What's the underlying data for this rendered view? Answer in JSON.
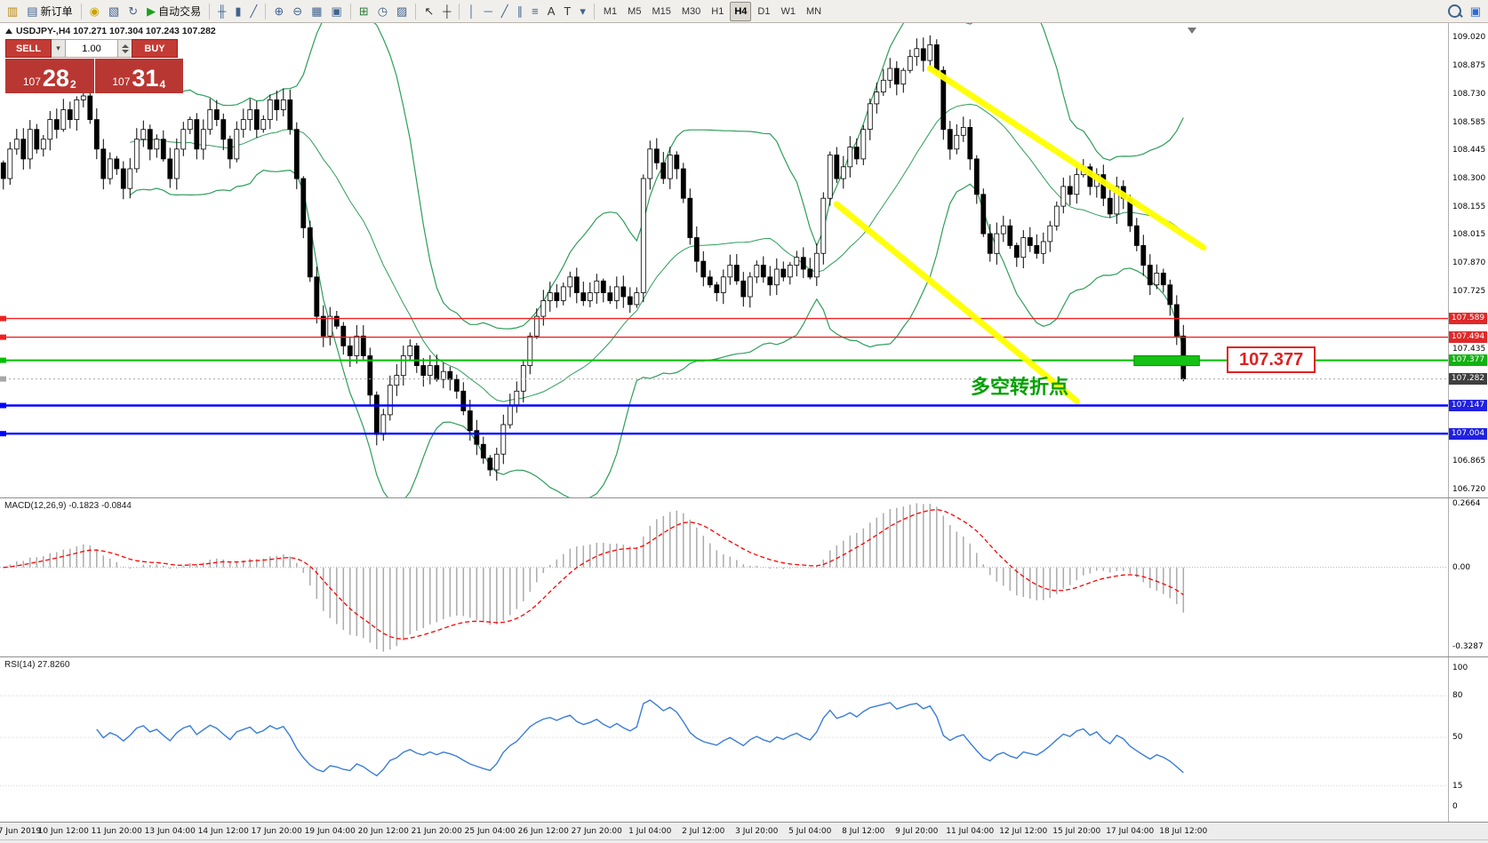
{
  "toolbar": {
    "left_buttons": [
      {
        "n": "terminal",
        "g": "▥",
        "c": "#b8860b"
      },
      {
        "n": "new-order",
        "g": "▤",
        "c": "#3f638f",
        "label": "新订单"
      },
      {
        "n": "sep1",
        "sep": true
      },
      {
        "n": "gold",
        "g": "◉",
        "c": "#c8a400"
      },
      {
        "n": "market-watch",
        "g": "▧",
        "c": "#3f638f"
      },
      {
        "n": "refresh",
        "g": "↻",
        "c": "#3f638f"
      },
      {
        "n": "auto-trading",
        "g": "▶",
        "c": "#1ca01c",
        "label": "自动交易"
      },
      {
        "n": "sep2",
        "sep": true
      },
      {
        "n": "bars-chart",
        "g": "╫",
        "c": "#3f638f"
      },
      {
        "n": "candles-chart",
        "g": "▮",
        "c": "#3f638f"
      },
      {
        "n": "line-chart",
        "g": "╱",
        "c": "#3f638f"
      },
      {
        "n": "sep3",
        "sep": true
      },
      {
        "n": "zoom-in",
        "g": "⊕",
        "c": "#3f638f"
      },
      {
        "n": "zoom-out",
        "g": "⊖",
        "c": "#3f638f"
      },
      {
        "n": "grid",
        "g": "▦",
        "c": "#3f638f"
      },
      {
        "n": "tile-windows",
        "g": "▣",
        "c": "#3f638f"
      },
      {
        "n": "sep4",
        "sep": true
      },
      {
        "n": "indicators",
        "g": "⊞",
        "c": "#2f7d3a"
      },
      {
        "n": "periods",
        "g": "◷",
        "c": "#3f638f"
      },
      {
        "n": "templates",
        "g": "▨",
        "c": "#3f638f"
      },
      {
        "n": "sep5",
        "sep": true
      },
      {
        "n": "cursor",
        "g": "↖",
        "c": "#333333"
      },
      {
        "n": "crosshair",
        "g": "┼",
        "c": "#333333"
      },
      {
        "n": "sep6",
        "sep": true
      },
      {
        "n": "vertical-line",
        "g": "│",
        "c": "#3f638f"
      },
      {
        "n": "horizontal-line",
        "g": "─",
        "c": "#3f638f"
      },
      {
        "n": "trendline",
        "g": "╱",
        "c": "#3f638f"
      },
      {
        "n": "channel",
        "g": "∥",
        "c": "#3f638f"
      },
      {
        "n": "fibonacci",
        "g": "≡",
        "c": "#3f638f"
      },
      {
        "n": "text",
        "g": "A",
        "c": "#333333"
      },
      {
        "n": "label",
        "g": "T",
        "c": "#333333"
      },
      {
        "n": "arrows",
        "g": "▾",
        "c": "#3f638f"
      },
      {
        "n": "sep7",
        "sep": true
      }
    ],
    "timeframes": [
      "M1",
      "M5",
      "M15",
      "M30",
      "H1",
      "H4",
      "D1",
      "W1",
      "MN"
    ],
    "active_timeframe": "H4",
    "right_buttons": [
      {
        "n": "search",
        "search": true
      },
      {
        "n": "chat",
        "g": "▣",
        "c": "#2b6bd4"
      }
    ]
  },
  "trade_panel": {
    "sell_label": "SELL",
    "buy_label": "BUY",
    "volume": "1.00",
    "sell_price": {
      "small": "107",
      "big": "28",
      "sup": "2"
    },
    "buy_price": {
      "small": "107",
      "big": "31",
      "sup": "4"
    }
  },
  "chart_header": {
    "symbol_line": "USDJPY-,H4  107.271 107.304 107.243 107.282"
  },
  "chart_data": {
    "type": "candlestick",
    "symbol": "USDJPY-",
    "timeframe": "H4",
    "current_ohlc": {
      "open": "107.271",
      "high": "107.304",
      "low": "107.243",
      "close": "107.282"
    },
    "y_axis": {
      "min": 106.68,
      "max": 109.09,
      "plain_labels": [
        "109.020",
        "108.875",
        "108.730",
        "108.585",
        "108.445",
        "108.300",
        "108.155",
        "108.015",
        "107.870",
        "107.725",
        "107.435",
        "106.865",
        "106.720"
      ],
      "badges": [
        {
          "text": "107.589",
          "color": "#e02828"
        },
        {
          "text": "107.494",
          "color": "#e02828"
        },
        {
          "text": "107.377",
          "color": "#12b212"
        },
        {
          "text": "107.282",
          "color": "#3f3f3f"
        },
        {
          "text": "107.147",
          "color": "#2020e0"
        },
        {
          "text": "107.004",
          "color": "#2020e0"
        }
      ]
    },
    "time_labels": [
      "7 Jun 2019",
      "10 Jun 12:00",
      "11 Jun 20:00",
      "13 Jun 04:00",
      "14 Jun 12:00",
      "17 Jun 20:00",
      "19 Jun 04:00",
      "20 Jun 12:00",
      "21 Jun 20:00",
      "25 Jun 04:00",
      "26 Jun 12:00",
      "27 Jun 20:00",
      "1 Jul 04:00",
      "2 Jul 12:00",
      "3 Jul 20:00",
      "5 Jul 04:00",
      "8 Jul 12:00",
      "9 Jul 20:00",
      "11 Jul 04:00",
      "12 Jul 12:00",
      "15 Jul 20:00",
      "17 Jul 04:00",
      "18 Jul 12:00"
    ],
    "label_start": 1,
    "label_every": 8,
    "closes": [
      108.3,
      108.45,
      108.5,
      108.4,
      108.55,
      108.45,
      108.5,
      108.6,
      108.55,
      108.65,
      108.6,
      108.7,
      108.72,
      108.6,
      108.45,
      108.3,
      108.4,
      108.35,
      108.25,
      108.35,
      108.5,
      108.55,
      108.45,
      108.5,
      108.4,
      108.3,
      108.45,
      108.55,
      108.6,
      108.45,
      108.55,
      108.65,
      108.6,
      108.5,
      108.4,
      108.55,
      108.6,
      108.65,
      108.55,
      108.6,
      108.7,
      108.65,
      108.7,
      108.55,
      108.3,
      108.05,
      107.8,
      107.6,
      107.5,
      107.6,
      107.55,
      107.45,
      107.4,
      107.5,
      107.4,
      107.2,
      107.0,
      107.1,
      107.25,
      107.3,
      107.4,
      107.45,
      107.35,
      107.3,
      107.35,
      107.28,
      107.32,
      107.28,
      107.22,
      107.12,
      107.02,
      106.95,
      106.88,
      106.82,
      106.9,
      107.05,
      107.15,
      107.22,
      107.35,
      107.5,
      107.6,
      107.68,
      107.72,
      107.68,
      107.75,
      107.8,
      107.72,
      107.68,
      107.72,
      107.78,
      107.72,
      107.68,
      107.75,
      107.7,
      107.66,
      107.72,
      108.3,
      108.45,
      108.38,
      108.3,
      108.42,
      108.35,
      108.2,
      108.0,
      107.88,
      107.8,
      107.76,
      107.72,
      107.8,
      107.86,
      107.78,
      107.7,
      107.8,
      107.86,
      107.8,
      107.76,
      107.84,
      107.8,
      107.86,
      107.9,
      107.84,
      107.8,
      107.92,
      108.2,
      108.42,
      108.3,
      108.36,
      108.46,
      108.4,
      108.55,
      108.68,
      108.74,
      108.8,
      108.86,
      108.78,
      108.85,
      108.92,
      108.96,
      108.9,
      108.98,
      108.85,
      108.55,
      108.45,
      108.52,
      108.56,
      108.4,
      108.22,
      108.02,
      107.92,
      108.02,
      108.06,
      107.96,
      107.9,
      108.0,
      107.96,
      107.92,
      107.98,
      108.06,
      108.16,
      108.26,
      108.22,
      108.32,
      108.36,
      108.26,
      108.32,
      108.2,
      108.12,
      108.26,
      108.2,
      108.06,
      107.96,
      107.86,
      107.76,
      107.82,
      107.76,
      107.66,
      107.5,
      107.282
    ],
    "levels": [
      {
        "price": 107.589,
        "color": "#f02020",
        "width": 1.4
      },
      {
        "price": 107.494,
        "color": "#f02020",
        "width": 1.4
      },
      {
        "price": 107.377,
        "color": "#00c000",
        "width": 2
      },
      {
        "price": 107.282,
        "color": "#a8a8a8",
        "width": 1,
        "dash": "2,3"
      },
      {
        "price": 107.147,
        "color": "#0000ff",
        "width": 2.4
      },
      {
        "price": 107.004,
        "color": "#0000ff",
        "width": 2.4
      }
    ],
    "trendlines": [
      {
        "i1": 139,
        "p1": 108.86,
        "i2": 180,
        "p2": 107.95,
        "color": "#ffff00",
        "width": 7
      },
      {
        "i1": 125,
        "p1": 108.17,
        "i2": 161,
        "p2": 107.17,
        "color": "#ffff00",
        "width": 7
      }
    ],
    "highlight_rect": {
      "i1": 170,
      "i2": 179,
      "p1": 107.4,
      "p2": 107.35,
      "fill": "#15c115",
      "stroke": "#0d8a0d"
    },
    "callout": {
      "text": "107.377",
      "price": 107.377
    },
    "note": {
      "text": "多空转折点",
      "price": 107.377
    },
    "indicators": {
      "bollinger": {
        "period": 20,
        "dev": 2,
        "color": "#2e9e5b"
      },
      "macd": {
        "label": "MACD(12,26,9) -0.1823 -0.0844",
        "fast": 12,
        "slow": 26,
        "signal": 9,
        "scale": [
          {
            "text": "0.2664",
            "v": 0.2664
          },
          {
            "text": "0.00",
            "v": 0
          },
          {
            "text": "-0.3287",
            "v": -0.3287
          }
        ]
      },
      "rsi": {
        "label": "RSI(14) 27.8260",
        "period": 14,
        "scale": [
          {
            "text": "100",
            "v": 100
          },
          {
            "text": "80",
            "v": 80
          },
          {
            "text": "50",
            "v": 50
          },
          {
            "text": "15",
            "v": 15
          },
          {
            "text": "0",
            "v": 0
          }
        ],
        "level_lines": [
          80,
          50,
          15
        ]
      }
    }
  }
}
